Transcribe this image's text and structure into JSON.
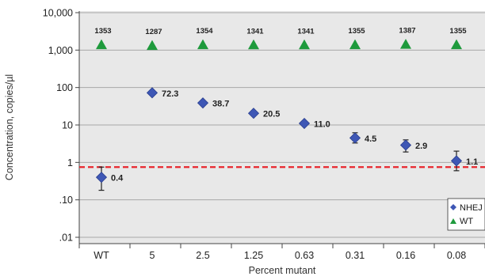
{
  "chart_data": {
    "type": "scatter",
    "y_scale": "log",
    "ylim": [
      0.01,
      10000
    ],
    "y_ticks": [
      "10,000",
      "1,000",
      "100",
      "10",
      "1",
      ".10",
      ".01"
    ],
    "y_tick_values": [
      10000,
      1000,
      100,
      10,
      1,
      0.1,
      0.01
    ],
    "categories": [
      "WT",
      "5",
      "2.5",
      "1.25",
      "0.63",
      "0.31",
      "0.16",
      "0.08"
    ],
    "xlabel": "Percent mutant",
    "ylabel": "Concentration, copies/µl",
    "grid": true,
    "threshold": {
      "value": 0.75,
      "style": "dashed",
      "color": "#e8262c"
    },
    "series": [
      {
        "name": "NHEJ",
        "marker": "diamond",
        "color": "#3e57b5",
        "values": [
          0.4,
          72.3,
          38.7,
          20.5,
          11.0,
          4.5,
          2.9,
          1.1
        ],
        "labels": [
          "0.4",
          "72.3",
          "38.7",
          "20.5",
          "11.0",
          "4.5",
          "2.9",
          "1.1"
        ],
        "error_low": [
          0.18,
          null,
          null,
          null,
          null,
          3.3,
          1.9,
          0.6
        ],
        "error_high": [
          0.75,
          null,
          null,
          null,
          null,
          6.2,
          4.0,
          2.0
        ]
      },
      {
        "name": "WT",
        "marker": "triangle",
        "color": "#1e9a3c",
        "values": [
          1353,
          1287,
          1354,
          1341,
          1341,
          1355,
          1387,
          1355
        ],
        "labels": [
          "1353",
          "1287",
          "1354",
          "1341",
          "1341",
          "1355",
          "1387",
          "1355"
        ]
      }
    ],
    "legend": {
      "position": "bottom-right"
    },
    "plot_background": "#e8e8e8"
  }
}
